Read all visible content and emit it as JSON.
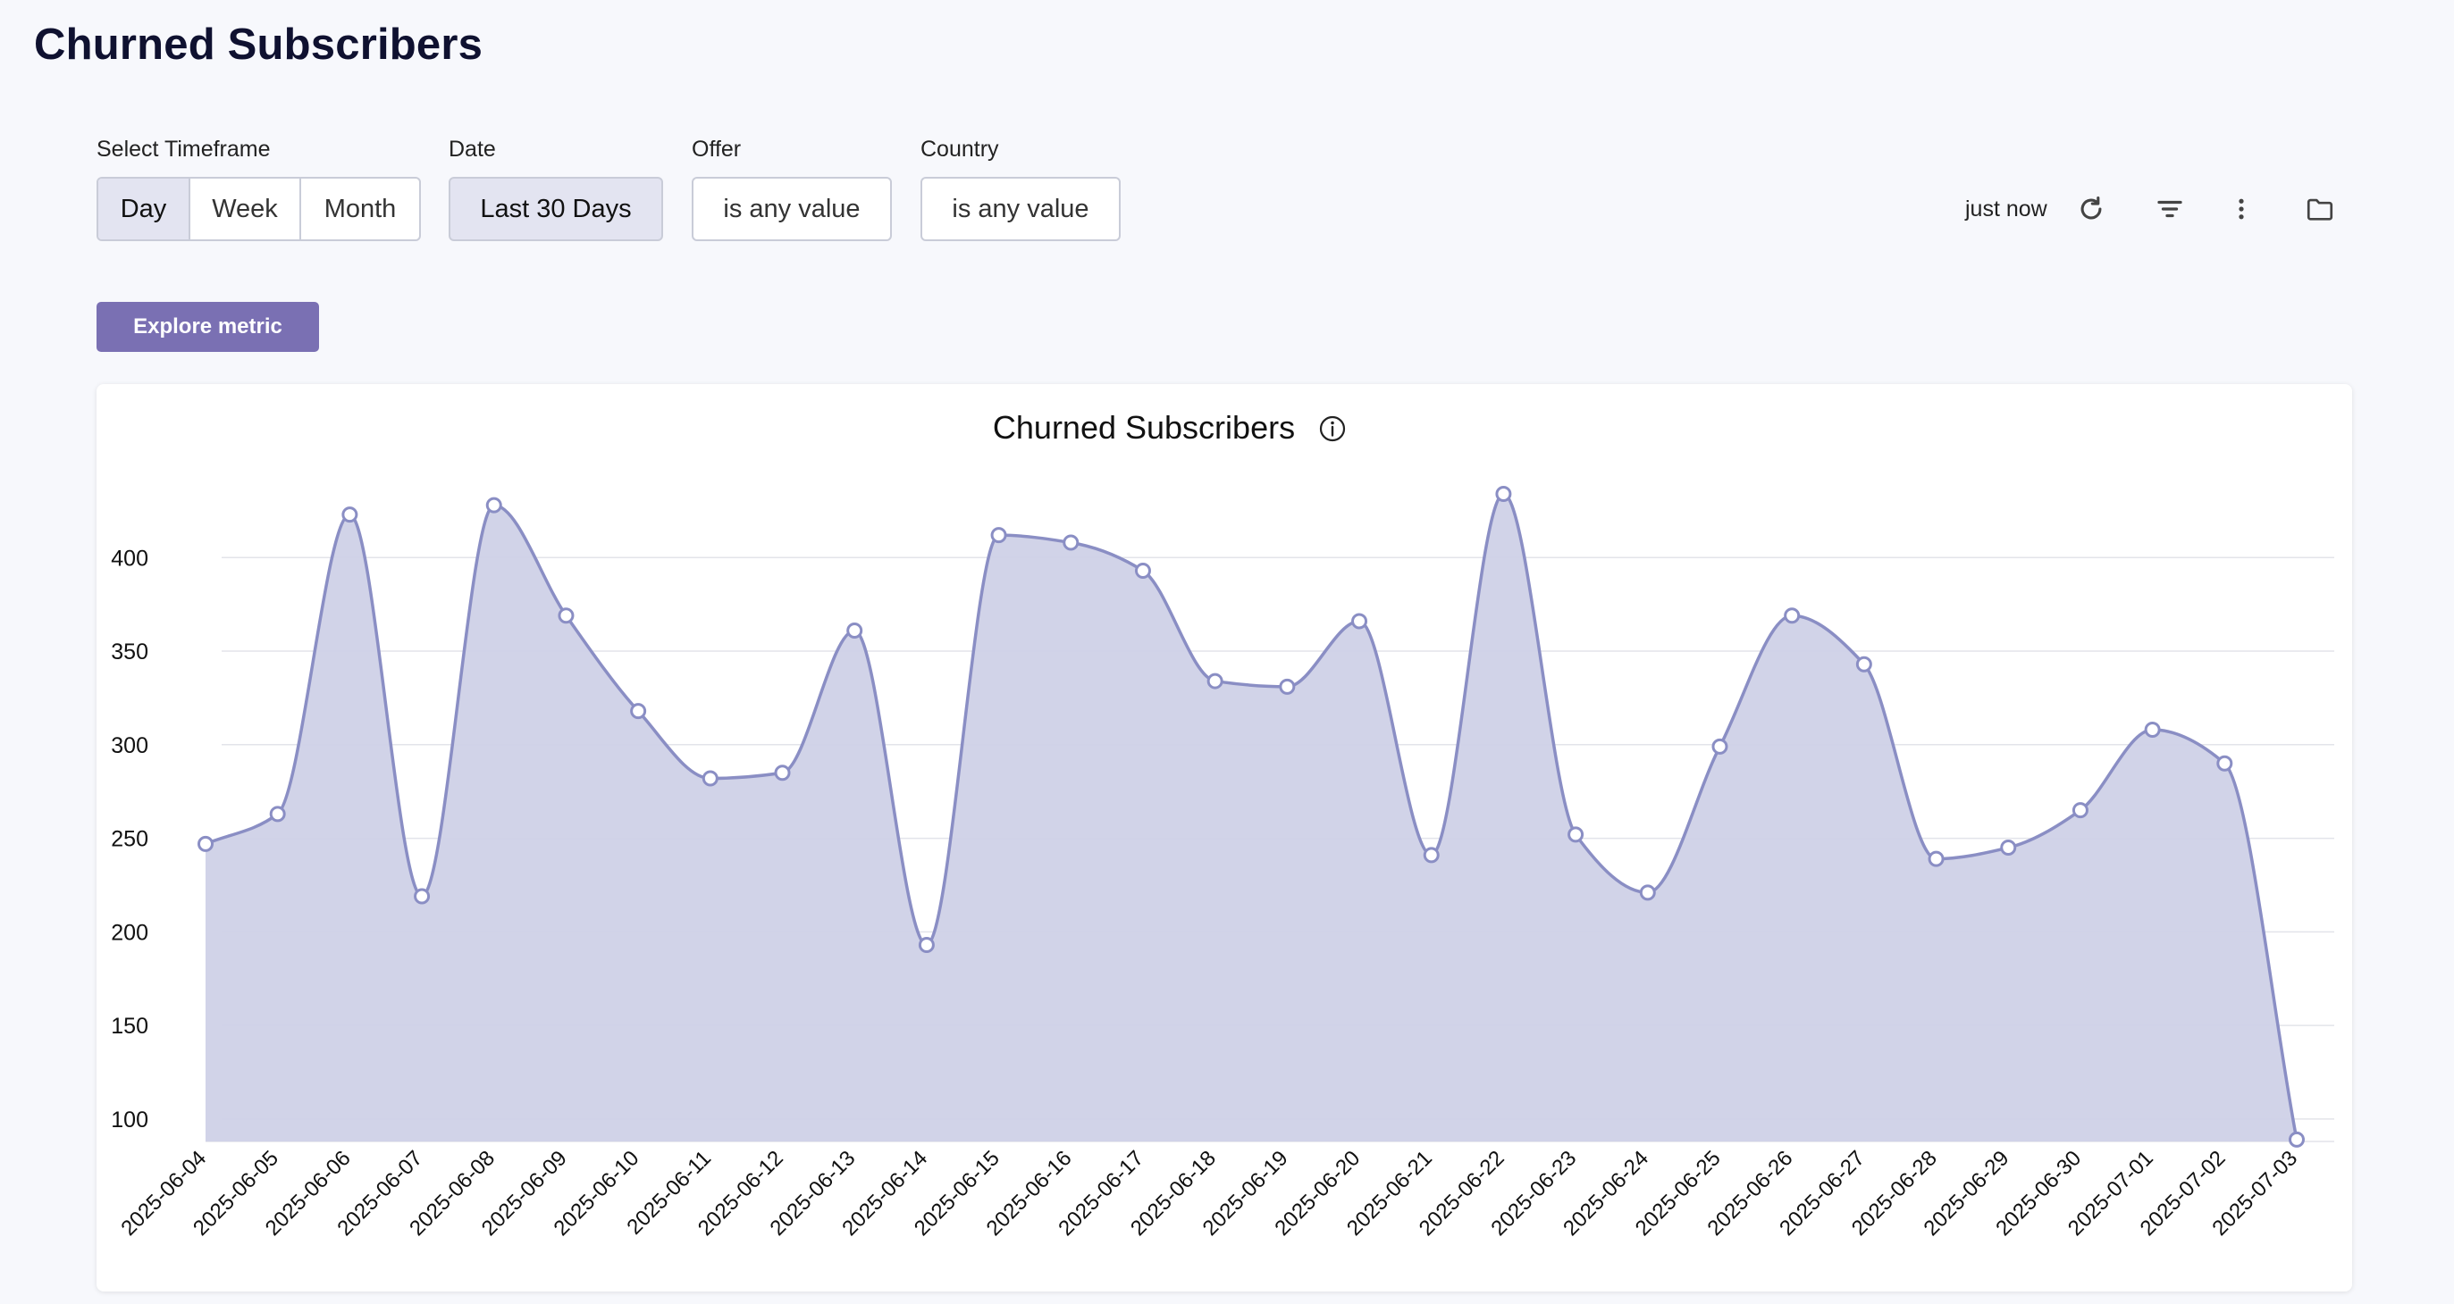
{
  "page": {
    "title": "Churned Subscribers"
  },
  "filters": {
    "timeframe": {
      "label": "Select Timeframe",
      "options": [
        "Day",
        "Week",
        "Month"
      ],
      "selected": "Day"
    },
    "date": {
      "label": "Date",
      "value": "Last 30 Days"
    },
    "offer": {
      "label": "Offer",
      "value": "is any value"
    },
    "country": {
      "label": "Country",
      "value": "is any value"
    }
  },
  "toolbar": {
    "updated_text": "just now",
    "icons": [
      "refresh-icon",
      "filter-icon",
      "more-vert-icon",
      "folder-icon"
    ]
  },
  "explore_button": {
    "label": "Explore metric"
  },
  "colors": {
    "accent": "#7a70b3",
    "line": "#8a8ec4",
    "fill": "#cfd1e7",
    "grid": "#e3e4ea"
  },
  "chart_data": {
    "type": "area",
    "title": "Churned Subscribers",
    "xlabel": "",
    "ylabel": "",
    "ylim": [
      88,
      445
    ],
    "yticks": [
      100,
      150,
      200,
      250,
      300,
      350,
      400
    ],
    "grid": true,
    "x": [
      "2025-06-04",
      "2025-06-05",
      "2025-06-06",
      "2025-06-07",
      "2025-06-08",
      "2025-06-09",
      "2025-06-10",
      "2025-06-11",
      "2025-06-12",
      "2025-06-13",
      "2025-06-14",
      "2025-06-15",
      "2025-06-16",
      "2025-06-17",
      "2025-06-18",
      "2025-06-19",
      "2025-06-20",
      "2025-06-21",
      "2025-06-22",
      "2025-06-23",
      "2025-06-24",
      "2025-06-25",
      "2025-06-26",
      "2025-06-27",
      "2025-06-28",
      "2025-06-29",
      "2025-06-30",
      "2025-07-01",
      "2025-07-02",
      "2025-07-03"
    ],
    "series": [
      {
        "name": "Churned Subscribers",
        "values": [
          247,
          263,
          423,
          219,
          428,
          369,
          318,
          282,
          285,
          361,
          193,
          412,
          408,
          393,
          334,
          331,
          366,
          241,
          434,
          252,
          221,
          299,
          369,
          343,
          239,
          245,
          265,
          308,
          290,
          89
        ]
      }
    ]
  }
}
